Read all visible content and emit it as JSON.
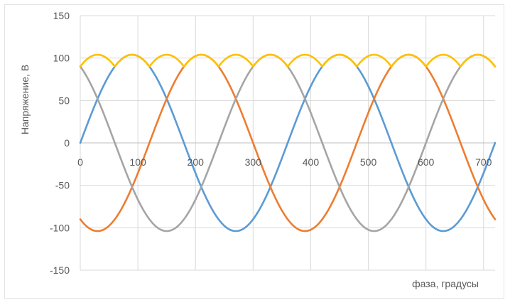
{
  "chart_data": {
    "type": "line",
    "title": "",
    "xlabel": "фаза, градусы",
    "ylabel": "Напряжение, В",
    "xlim": [
      0,
      720
    ],
    "ylim": [
      -150,
      150
    ],
    "x_ticks": [
      0,
      100,
      200,
      300,
      400,
      500,
      600,
      700
    ],
    "y_ticks": [
      150,
      100,
      50,
      0,
      -50,
      -100,
      -150
    ],
    "grid": true,
    "legend": "none",
    "x_step": 5,
    "series": [
      {
        "color": "#5b9bd5",
        "amplitude": 104,
        "phase_deg": 0,
        "kind": "sine"
      },
      {
        "color": "#ed7d31",
        "amplitude": 104,
        "phase_deg": 120,
        "kind": "sine"
      },
      {
        "color": "#a5a5a5",
        "amplitude": 104,
        "phase_deg": 240,
        "kind": "sine"
      },
      {
        "color": "#ffc000",
        "amplitude": 104,
        "phase_deg": 0,
        "kind": "max-of-abs-phases"
      }
    ]
  }
}
